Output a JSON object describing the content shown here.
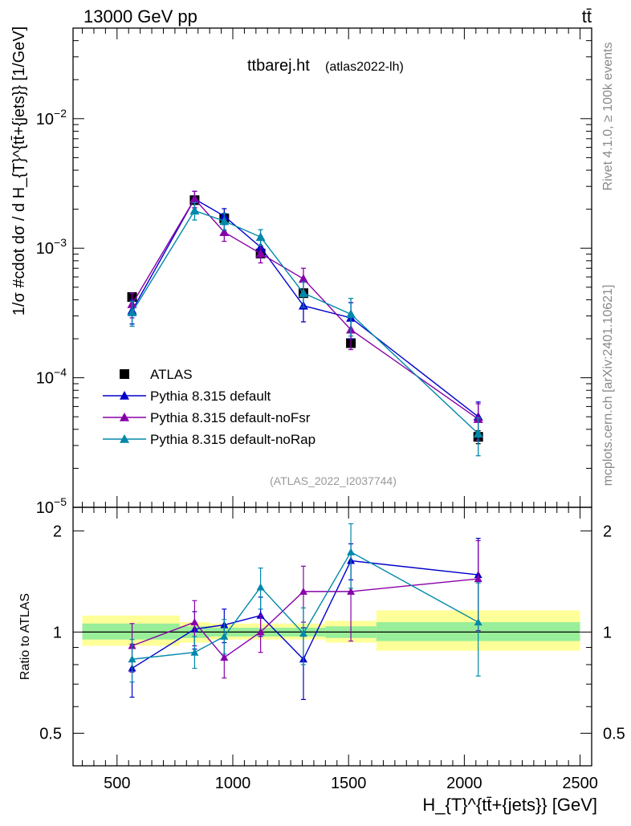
{
  "header": {
    "energy_label": "13000 GeV pp",
    "process_label": "tt̄"
  },
  "side_labels": {
    "rivet": "Rivet 4.1.0, ≥ 100k events",
    "mcplots": "mcplots.cern.ch [arXiv:2401.10621]"
  },
  "chart_data": [
    {
      "panel": "main",
      "type": "line",
      "title": "ttbarej.ht",
      "subtitle": "(atlas2022-lh)",
      "watermark": "(ATLAS_2022_I2037744)",
      "ylabel": "1/σ #cdot dσ / d H_{T}^{tt̄+{jets}} [1/GeV]",
      "yscale": "log",
      "ylim": [
        1e-05,
        0.05
      ],
      "xlim": [
        310,
        2550
      ],
      "y_ticks": [
        {
          "value": 1e-05,
          "base": "10",
          "exp": "−5"
        },
        {
          "value": 0.0001,
          "base": "10",
          "exp": "−4"
        },
        {
          "value": 0.001,
          "base": "10",
          "exp": "−3"
        },
        {
          "value": 0.01,
          "base": "10",
          "exp": "−2"
        }
      ],
      "x": [
        565,
        835,
        963,
        1120,
        1305,
        1510,
        2060
      ],
      "series": [
        {
          "name": "ATLAS",
          "type": "data",
          "color": "#000000",
          "marker": "square",
          "values": [
            0.00042,
            0.00235,
            0.0017,
            0.00091,
            0.00045,
            0.000185,
            3.5e-05
          ],
          "err": [
            3e-05,
            0.00012,
            9e-05,
            5e-05,
            3e-05,
            1.2e-05,
            4e-06
          ]
        },
        {
          "name": "Pythia 8.315 default",
          "type": "mc",
          "color": "#0000cc",
          "marker": "triangle",
          "values": [
            0.00033,
            0.0024,
            0.00177,
            0.00102,
            0.00036,
            0.00029,
            5e-05
          ],
          "err": [
            7e-05,
            0.00035,
            0.00025,
            0.00015,
            9e-05,
            9e-05,
            1.5e-05
          ]
        },
        {
          "name": "Pythia 8.315 default-noFsr",
          "type": "mc",
          "color": "#8800aa",
          "marker": "triangle",
          "values": [
            0.00037,
            0.0024,
            0.00133,
            0.00091,
            0.00058,
            0.000235,
            4.8e-05
          ],
          "err": [
            8e-05,
            0.00035,
            0.0002,
            0.00014,
            0.00012,
            7e-05,
            1.5e-05
          ]
        },
        {
          "name": "Pythia 8.315 default-noRap",
          "type": "mc",
          "color": "#0088aa",
          "marker": "triangle",
          "values": [
            0.00032,
            0.00195,
            0.00162,
            0.00122,
            0.00045,
            0.00031,
            3.7e-05
          ],
          "err": [
            7e-05,
            0.0003,
            0.00024,
            0.00017,
            0.0001,
            0.0001,
            1.2e-05
          ]
        }
      ]
    },
    {
      "panel": "ratio",
      "type": "line",
      "ylabel": "Ratio to ATLAS",
      "xlabel": "H_{T}^{tt̄+{jets}} [GeV]",
      "yscale": "log",
      "ylim": [
        0.4,
        2.35
      ],
      "xlim": [
        310,
        2550
      ],
      "y_ticks": [
        0.5,
        1,
        2
      ],
      "x_ticks": [
        500,
        1000,
        1500,
        2000,
        2500
      ],
      "reference": 1,
      "bands": [
        {
          "xlo": 350,
          "xhi": 770,
          "inner": [
            0.95,
            1.06
          ],
          "outer": [
            0.91,
            1.12
          ]
        },
        {
          "xlo": 770,
          "xhi": 900,
          "inner": [
            0.96,
            1.04
          ],
          "outer": [
            0.93,
            1.07
          ]
        },
        {
          "xlo": 900,
          "xhi": 1400,
          "inner": [
            0.97,
            1.03
          ],
          "outer": [
            0.95,
            1.06
          ]
        },
        {
          "xlo": 1400,
          "xhi": 1620,
          "inner": [
            0.96,
            1.04
          ],
          "outer": [
            0.93,
            1.08
          ]
        },
        {
          "xlo": 1620,
          "xhi": 2500,
          "inner": [
            0.94,
            1.07
          ],
          "outer": [
            0.88,
            1.16
          ]
        }
      ],
      "x": [
        565,
        835,
        963,
        1120,
        1305,
        1510,
        2060
      ],
      "series": [
        {
          "name": "Pythia 8.315 default",
          "color": "#0000cc",
          "values": [
            0.78,
            1.02,
            1.05,
            1.12,
            0.83,
            1.63,
            1.48
          ],
          "lo": [
            0.64,
            0.89,
            0.93,
            0.97,
            0.63,
            1.43,
            1.06
          ],
          "hi": [
            0.92,
            1.15,
            1.17,
            1.27,
            1.03,
            1.83,
            1.9
          ]
        },
        {
          "name": "Pythia 8.315 default-noFsr",
          "color": "#8800aa",
          "values": [
            0.91,
            1.07,
            0.84,
            1.0,
            1.32,
            1.32,
            1.44
          ],
          "lo": [
            0.76,
            0.91,
            0.73,
            0.87,
            1.07,
            0.94,
            1.01
          ],
          "hi": [
            1.06,
            1.24,
            0.96,
            1.12,
            1.57,
            1.7,
            1.87
          ]
        },
        {
          "name": "Pythia 8.315 default-noRap",
          "color": "#0088aa",
          "values": [
            0.83,
            0.87,
            0.97,
            1.36,
            0.99,
            1.73,
            1.07
          ],
          "lo": [
            0.71,
            0.78,
            0.86,
            1.17,
            0.8,
            1.35,
            0.74
          ],
          "hi": [
            0.95,
            0.97,
            1.09,
            1.55,
            1.18,
            2.1,
            1.4
          ]
        }
      ]
    }
  ]
}
